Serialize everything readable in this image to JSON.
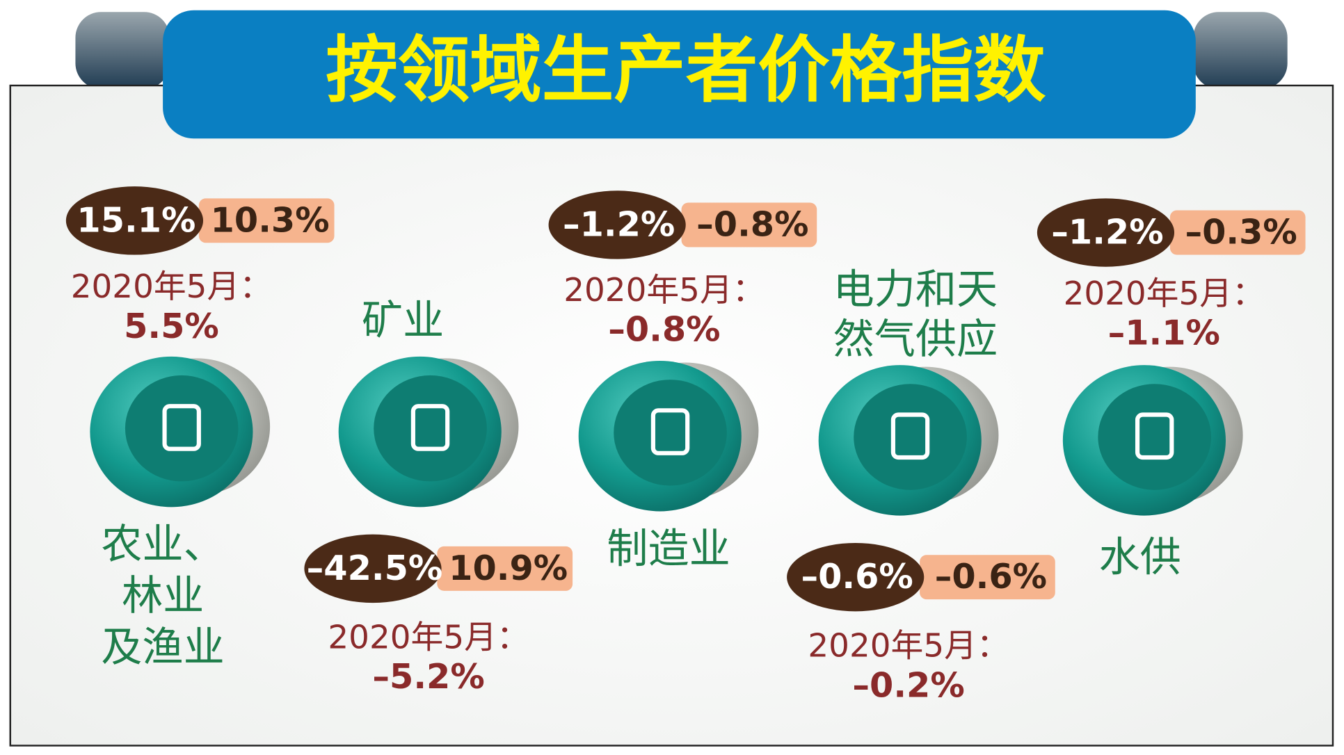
{
  "header": {
    "title": "按领域生产者价格指数"
  },
  "sectors": [
    {
      "name_lines": [
        "农业、",
        "林业",
        "及渔业"
      ],
      "yoy": "15.1%",
      "mom": "10.3%",
      "may_label": "2020年5月：",
      "may_value": "5.5%"
    },
    {
      "name_lines": [
        "矿业"
      ],
      "yoy": "–42.5%",
      "mom": "10.9%",
      "may_label": "2020年5月：",
      "may_value": "–5.2%"
    },
    {
      "name_lines": [
        "制造业"
      ],
      "yoy": "–1.2%",
      "mom": "–0.8%",
      "may_label": "2020年5月：",
      "may_value": "–0.8%"
    },
    {
      "name_lines": [
        "电力和天",
        "然气供应"
      ],
      "yoy": "–0.6%",
      "mom": "–0.6%",
      "may_label": "2020年5月：",
      "may_value": "–0.2%"
    },
    {
      "name_lines": [
        "水供"
      ],
      "yoy": "–1.2%",
      "mom": "–0.3%",
      "may_label": "2020年5月：",
      "may_value": "–1.1%"
    }
  ]
}
